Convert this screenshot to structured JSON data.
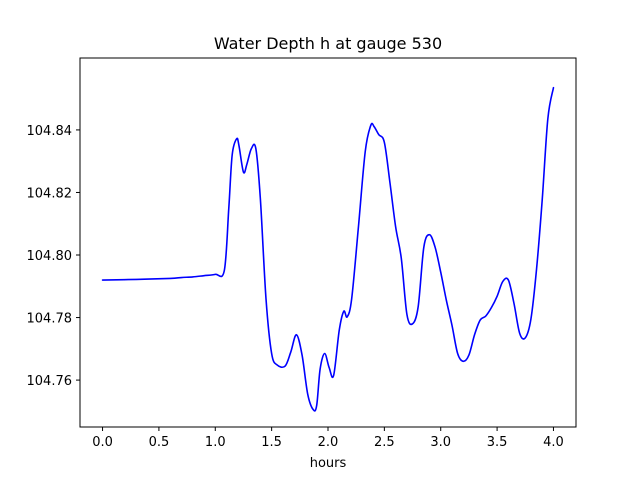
{
  "chart_data": {
    "type": "line",
    "title": "Water Depth h at gauge 530",
    "xlabel": "hours",
    "ylabel": "",
    "xlim": [
      -0.2,
      4.2
    ],
    "ylim": [
      104.745,
      104.863
    ],
    "xticks": [
      0.0,
      0.5,
      1.0,
      1.5,
      2.0,
      2.5,
      3.0,
      3.5,
      4.0
    ],
    "xtick_labels": [
      "0.0",
      "0.5",
      "1.0",
      "1.5",
      "2.0",
      "2.5",
      "3.0",
      "3.5",
      "4.0"
    ],
    "yticks": [
      104.76,
      104.78,
      104.8,
      104.82,
      104.84
    ],
    "ytick_labels": [
      "104.76",
      "104.78",
      "104.80",
      "104.82",
      "104.84"
    ],
    "grid": false,
    "series": [
      {
        "color": "#0000ff",
        "x": [
          0.0,
          0.3,
          0.6,
          0.7,
          0.8,
          0.9,
          1.0,
          1.08,
          1.12,
          1.15,
          1.19,
          1.21,
          1.25,
          1.28,
          1.32,
          1.36,
          1.4,
          1.45,
          1.5,
          1.55,
          1.62,
          1.67,
          1.72,
          1.77,
          1.82,
          1.87,
          1.9,
          1.93,
          1.97,
          2.01,
          2.05,
          2.1,
          2.14,
          2.17,
          2.21,
          2.27,
          2.33,
          2.38,
          2.41,
          2.45,
          2.5,
          2.55,
          2.6,
          2.65,
          2.7,
          2.75,
          2.8,
          2.85,
          2.9,
          2.95,
          3.0,
          3.05,
          3.1,
          3.15,
          3.2,
          3.25,
          3.3,
          3.35,
          3.4,
          3.45,
          3.5,
          3.55,
          3.6,
          3.65,
          3.7,
          3.75,
          3.8,
          3.85,
          3.9,
          3.95,
          4.0
        ],
        "y": [
          104.792,
          104.7922,
          104.7925,
          104.7928,
          104.793,
          104.7934,
          104.7938,
          104.795,
          104.815,
          104.832,
          104.8372,
          104.835,
          104.8265,
          104.829,
          104.834,
          104.834,
          104.818,
          104.786,
          104.7685,
          104.7648,
          104.7645,
          104.769,
          104.7745,
          104.768,
          104.7555,
          104.7505,
          104.752,
          104.7635,
          104.7685,
          104.764,
          104.7615,
          104.776,
          104.782,
          104.7802,
          104.786,
          104.809,
          104.833,
          104.8415,
          104.841,
          104.8385,
          104.836,
          104.823,
          104.809,
          104.799,
          104.781,
          104.778,
          104.7835,
          104.8025,
          104.8065,
          104.8025,
          104.7945,
          104.7855,
          104.7775,
          104.7685,
          104.766,
          104.768,
          104.7745,
          104.7792,
          104.7805,
          104.7832,
          104.7868,
          104.7915,
          104.792,
          104.7845,
          104.775,
          104.7735,
          104.7795,
          104.7955,
          104.8175,
          104.8435,
          104.8535
        ]
      }
    ]
  }
}
